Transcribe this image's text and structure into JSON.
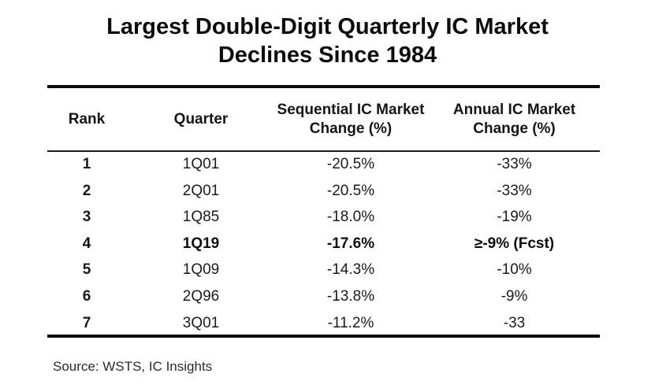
{
  "title": {
    "line1": "Largest Double-Digit Quarterly IC Market",
    "line2": "Declines Since 1984"
  },
  "table": {
    "headers": {
      "rank": "Rank",
      "quarter": "Quarter",
      "sequential": "Sequential IC Market Change (%)",
      "annual": "Annual IC Market Change (%)"
    },
    "rows": [
      {
        "rank": "1",
        "quarter": "1Q01",
        "sequential": "-20.5%",
        "annual": "-33%",
        "highlight": false
      },
      {
        "rank": "2",
        "quarter": "2Q01",
        "sequential": "-20.5%",
        "annual": "-33%",
        "highlight": false
      },
      {
        "rank": "3",
        "quarter": "1Q85",
        "sequential": "-18.0%",
        "annual": "-19%",
        "highlight": false
      },
      {
        "rank": "4",
        "quarter": "1Q19",
        "sequential": "-17.6%",
        "annual": "≥-9% (Fcst)",
        "highlight": true
      },
      {
        "rank": "5",
        "quarter": "1Q09",
        "sequential": "-14.3%",
        "annual": "-10%",
        "highlight": false
      },
      {
        "rank": "6",
        "quarter": "2Q96",
        "sequential": "-13.8%",
        "annual": "-9%",
        "highlight": false
      },
      {
        "rank": "7",
        "quarter": "3Q01",
        "sequential": "-11.2%",
        "annual": "-33",
        "highlight": false
      }
    ]
  },
  "source": "Source: WSTS, IC Insights"
}
